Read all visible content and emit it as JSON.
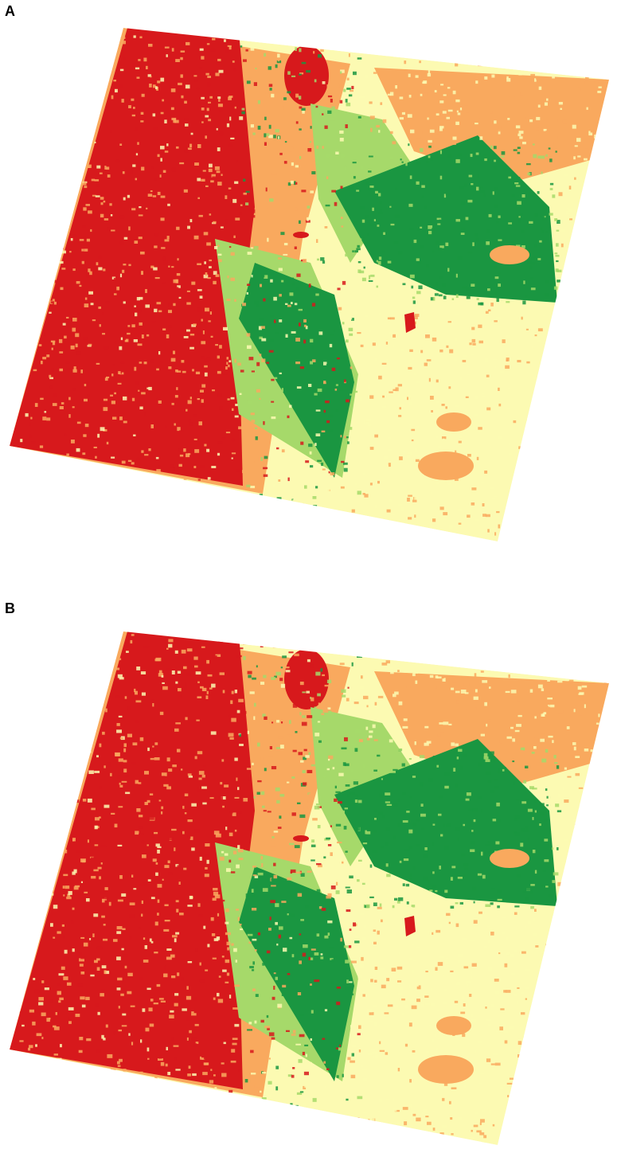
{
  "panels": [
    {
      "label": "A"
    },
    {
      "label": "B"
    }
  ],
  "legend_colors": {
    "very_high": "#d7191c",
    "high": "#f9a95e",
    "moderate": "#fcfab2",
    "low": "#a6d96a",
    "very_low": "#1a9641"
  }
}
